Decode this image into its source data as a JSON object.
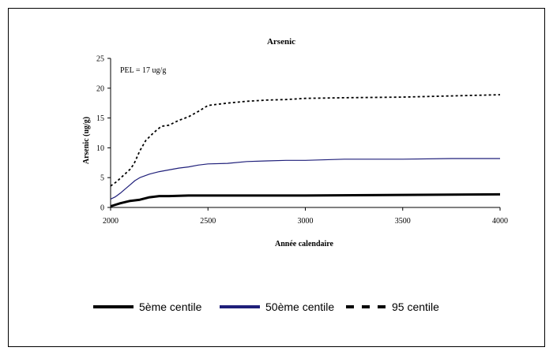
{
  "chart_data": {
    "type": "line",
    "title": "Arsenic",
    "xlabel": "Année calendaire",
    "ylabel": "Arsenic (ug/g)",
    "xlim": [
      2000,
      4000
    ],
    "ylim": [
      0,
      25
    ],
    "x_ticks": [
      2000,
      2500,
      3000,
      3500,
      4000
    ],
    "y_ticks": [
      0,
      5,
      10,
      15,
      20,
      25
    ],
    "grid": false,
    "legend_position": "bottom",
    "annotation": "PEL = 17 ug/g",
    "series": [
      {
        "name": "5ème centile",
        "color": "#000000",
        "style": "solid-thick",
        "points": [
          [
            2000,
            0.2
          ],
          [
            2020,
            0.4
          ],
          [
            2050,
            0.7
          ],
          [
            2100,
            1.1
          ],
          [
            2150,
            1.3
          ],
          [
            2200,
            1.7
          ],
          [
            2250,
            1.9
          ],
          [
            2300,
            1.9
          ],
          [
            2400,
            2.0
          ],
          [
            2500,
            2.0
          ],
          [
            3000,
            2.0
          ],
          [
            3500,
            2.1
          ],
          [
            4000,
            2.2
          ]
        ]
      },
      {
        "name": "50ème centile",
        "color": "#1f1f7a",
        "style": "solid-thin",
        "points": [
          [
            2000,
            1.4
          ],
          [
            2025,
            1.8
          ],
          [
            2050,
            2.4
          ],
          [
            2075,
            3.1
          ],
          [
            2100,
            3.8
          ],
          [
            2125,
            4.5
          ],
          [
            2150,
            5.0
          ],
          [
            2200,
            5.6
          ],
          [
            2250,
            6.0
          ],
          [
            2300,
            6.3
          ],
          [
            2350,
            6.6
          ],
          [
            2400,
            6.8
          ],
          [
            2450,
            7.1
          ],
          [
            2500,
            7.3
          ],
          [
            2600,
            7.4
          ],
          [
            2700,
            7.7
          ],
          [
            2800,
            7.8
          ],
          [
            2900,
            7.9
          ],
          [
            3000,
            7.9
          ],
          [
            3200,
            8.1
          ],
          [
            3500,
            8.1
          ],
          [
            3750,
            8.2
          ],
          [
            4000,
            8.2
          ]
        ]
      },
      {
        "name": "95 centile",
        "color": "#000000",
        "style": "dashed",
        "points": [
          [
            2000,
            3.6
          ],
          [
            2030,
            4.3
          ],
          [
            2060,
            5.2
          ],
          [
            2100,
            6.4
          ],
          [
            2120,
            7.3
          ],
          [
            2150,
            9.5
          ],
          [
            2180,
            11.2
          ],
          [
            2220,
            12.5
          ],
          [
            2260,
            13.6
          ],
          [
            2300,
            13.8
          ],
          [
            2350,
            14.6
          ],
          [
            2400,
            15.2
          ],
          [
            2450,
            16.1
          ],
          [
            2500,
            17.1
          ],
          [
            2600,
            17.5
          ],
          [
            2700,
            17.8
          ],
          [
            2800,
            18.0
          ],
          [
            2900,
            18.1
          ],
          [
            3000,
            18.3
          ],
          [
            3200,
            18.4
          ],
          [
            3500,
            18.5
          ],
          [
            3750,
            18.7
          ],
          [
            4000,
            18.9
          ]
        ]
      }
    ]
  }
}
